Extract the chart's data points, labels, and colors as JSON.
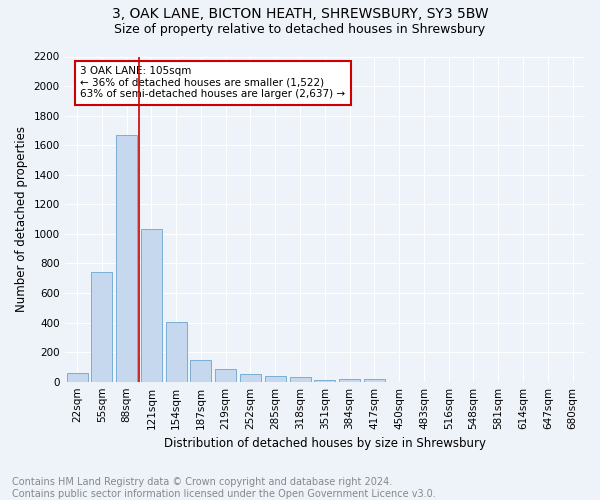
{
  "title": "3, OAK LANE, BICTON HEATH, SHREWSBURY, SY3 5BW",
  "subtitle": "Size of property relative to detached houses in Shrewsbury",
  "xlabel": "Distribution of detached houses by size in Shrewsbury",
  "ylabel": "Number of detached properties",
  "bar_labels": [
    "22sqm",
    "55sqm",
    "88sqm",
    "121sqm",
    "154sqm",
    "187sqm",
    "219sqm",
    "252sqm",
    "285sqm",
    "318sqm",
    "351sqm",
    "384sqm",
    "417sqm",
    "450sqm",
    "483sqm",
    "516sqm",
    "548sqm",
    "581sqm",
    "614sqm",
    "647sqm",
    "680sqm"
  ],
  "bar_values": [
    60,
    745,
    1670,
    1030,
    405,
    150,
    85,
    52,
    40,
    32,
    10,
    15,
    20,
    0,
    0,
    0,
    0,
    0,
    0,
    0,
    0
  ],
  "bar_color": "#c5d8ee",
  "bar_edge_color": "#7aaed4",
  "property_line_x": 2.5,
  "property_line_color": "#cc0000",
  "annotation_text": "3 OAK LANE: 105sqm\n← 36% of detached houses are smaller (1,522)\n63% of semi-detached houses are larger (2,637) →",
  "annotation_box_color": "#ffffff",
  "annotation_box_edge_color": "#cc0000",
  "ylim": [
    0,
    2200
  ],
  "yticks": [
    0,
    200,
    400,
    600,
    800,
    1000,
    1200,
    1400,
    1600,
    1800,
    2000,
    2200
  ],
  "footnote": "Contains HM Land Registry data © Crown copyright and database right 2024.\nContains public sector information licensed under the Open Government Licence v3.0.",
  "bg_color": "#eef2f9",
  "plot_bg_color": "#eef2f9",
  "grid_color": "#ffffff",
  "title_fontsize": 10,
  "subtitle_fontsize": 9,
  "axis_label_fontsize": 8.5,
  "tick_fontsize": 7.5,
  "annotation_fontsize": 7.5,
  "footnote_fontsize": 7
}
